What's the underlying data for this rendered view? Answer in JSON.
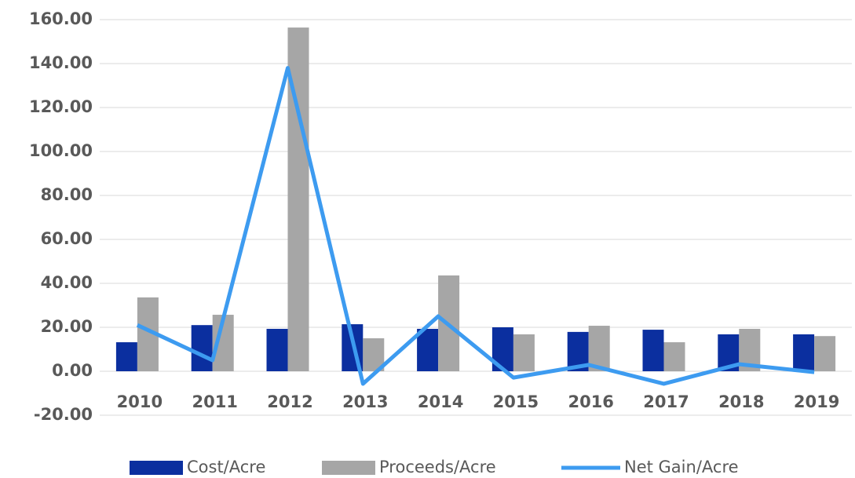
{
  "chart_data": {
    "type": "bar-line",
    "categories": [
      "2010",
      "2011",
      "2012",
      "2013",
      "2014",
      "2015",
      "2016",
      "2017",
      "2018",
      "2019"
    ],
    "series": [
      {
        "name": "Cost/Acre",
        "color": "#0b2f9f",
        "type": "bar",
        "values": [
          13.2,
          21.0,
          19.3,
          21.4,
          19.3,
          20.0,
          17.9,
          18.9,
          16.8,
          16.8
        ]
      },
      {
        "name": "Proceeds/Acre",
        "color": "#a6a6a6",
        "type": "bar",
        "values": [
          33.6,
          25.7,
          156.4,
          15.0,
          43.6,
          16.8,
          20.7,
          13.2,
          19.3,
          16.0
        ]
      },
      {
        "name": "Net Gain/Acre",
        "color": "#3d9bf0",
        "type": "line",
        "values": [
          21.0,
          5.0,
          138.0,
          -5.7,
          25.0,
          -2.9,
          2.9,
          -5.7,
          3.2,
          -0.4
        ]
      }
    ],
    "ylim": [
      -20,
      160
    ],
    "yticks": [
      {
        "value": -20,
        "label": "-20.00"
      },
      {
        "value": 0,
        "label": "0.00"
      },
      {
        "value": 20,
        "label": "20.00"
      },
      {
        "value": 40,
        "label": "40.00"
      },
      {
        "value": 60,
        "label": "60.00"
      },
      {
        "value": 80,
        "label": "80.00"
      },
      {
        "value": 100,
        "label": "100.00"
      },
      {
        "value": 120,
        "label": "120.00"
      },
      {
        "value": 140,
        "label": "140.00"
      },
      {
        "value": 160,
        "label": "160.00"
      }
    ],
    "grid": true,
    "legend": "bottom"
  }
}
